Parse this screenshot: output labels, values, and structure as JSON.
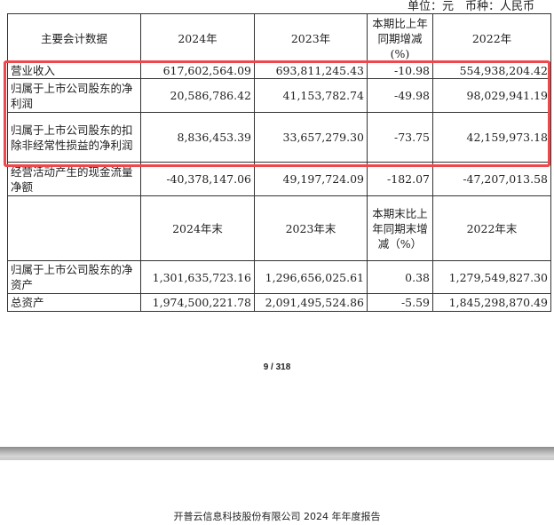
{
  "unit_line": "单位：元　币种：人民币",
  "header1": [
    "主要会计数据",
    "2024年",
    "2023年",
    "本期比上年同期增减(%)",
    "2022年"
  ],
  "rows1": [
    [
      "营业收入",
      "617,602,564.09",
      "693,811,245.43",
      "-10.98",
      "554,938,204.42"
    ],
    [
      "归属于上市公司股东的净利润",
      "20,586,786.42",
      "41,153,782.74",
      "-49.98",
      "98,029,941.19"
    ],
    [
      "归属于上市公司股东的扣除非经常性损益的净利润",
      "8,836,453.39",
      "33,657,279.30",
      "-73.75",
      "42,159,973.18"
    ],
    [
      "经营活动产生的现金流量净额",
      "-40,378,147.06",
      "49,197,724.09",
      "-182.07",
      "-47,207,013.58"
    ]
  ],
  "header2": [
    "",
    "2024年末",
    "2023年末",
    "本期末比上年同期末增减（%）",
    "2022年末"
  ],
  "rows2": [
    [
      "归属于上市公司股东的净资产",
      "1,301,635,723.16",
      "1,296,656,025.61",
      "0.38",
      "1,279,549,827.30"
    ],
    [
      "总资产",
      "1,974,500,221.78",
      "2,091,495,524.86",
      "-5.59",
      "1,845,298,870.49"
    ]
  ],
  "page_number": "9 / 318",
  "footer": "开普云信息科技股份有限公司 2024 年年度报告",
  "colors": {
    "highlight": "#f0474c"
  }
}
